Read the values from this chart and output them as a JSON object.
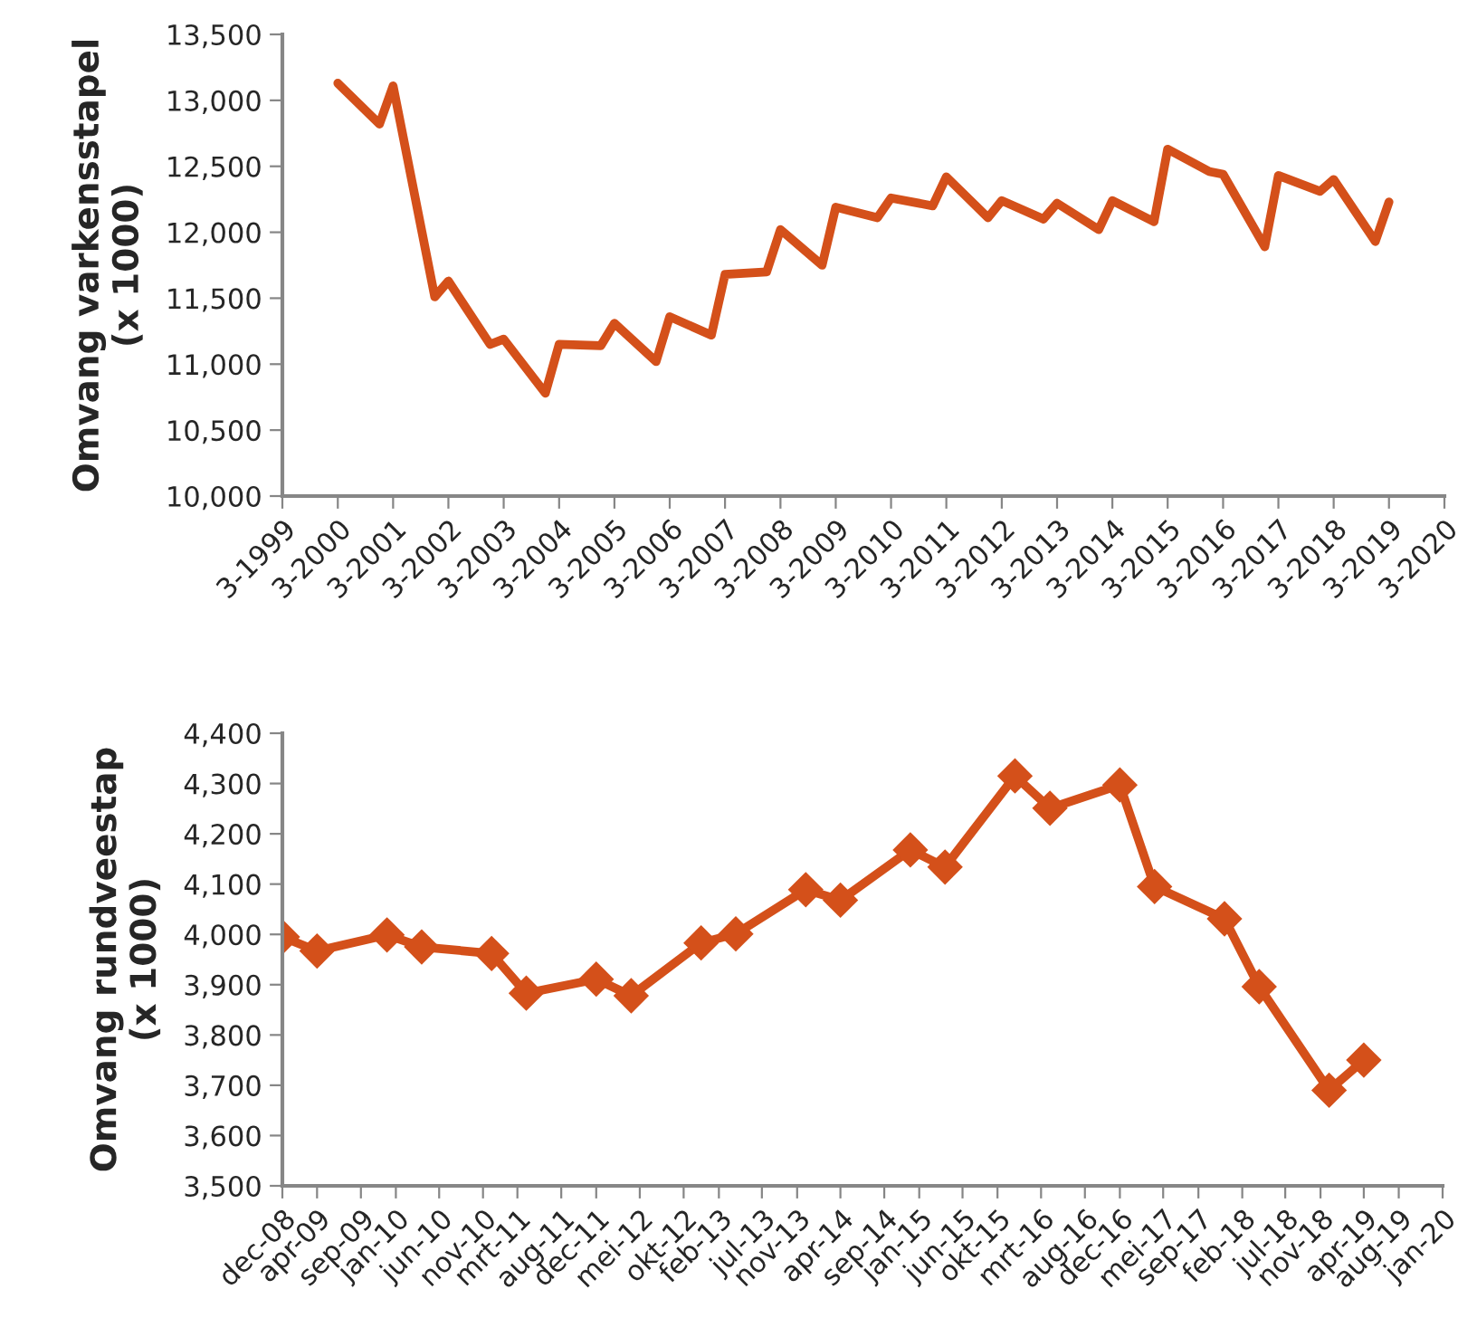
{
  "chart_data": [
    {
      "type": "line",
      "ylabel": "Omvang varkensstapel\n(x 1000)",
      "x": [
        "2000-03",
        "2000-12",
        "2001-03",
        "2001-12",
        "2002-03",
        "2002-12",
        "2003-03",
        "2003-12",
        "2004-03",
        "2004-12",
        "2005-03",
        "2005-12",
        "2006-03",
        "2006-12",
        "2007-03",
        "2007-12",
        "2008-03",
        "2008-12",
        "2009-03",
        "2009-12",
        "2010-03",
        "2010-12",
        "2011-03",
        "2011-12",
        "2012-03",
        "2012-12",
        "2013-03",
        "2013-12",
        "2014-03",
        "2014-12",
        "2015-03",
        "2015-12",
        "2016-03",
        "2016-12",
        "2017-03",
        "2017-12",
        "2018-03",
        "2018-12",
        "2019-03"
      ],
      "series": [
        {
          "color": "#d4501a",
          "values": [
            13130,
            12820,
            13110,
            11510,
            11630,
            11150,
            11190,
            10780,
            11150,
            11140,
            11310,
            11020,
            11360,
            11220,
            11680,
            11700,
            12020,
            11750,
            12190,
            12110,
            12260,
            12200,
            12420,
            12110,
            12240,
            12100,
            12220,
            12020,
            12240,
            12080,
            12630,
            12460,
            12440,
            11890,
            12430,
            12310,
            12400,
            11930,
            12230
          ]
        }
      ],
      "xlim": [
        "1999-03",
        "2020-03"
      ],
      "xticks": [
        {
          "value": "1999-03",
          "label": "3-1999"
        },
        {
          "value": "2000-03",
          "label": "3-2000"
        },
        {
          "value": "2001-03",
          "label": "3-2001"
        },
        {
          "value": "2002-03",
          "label": "3-2002"
        },
        {
          "value": "2003-03",
          "label": "3-2003"
        },
        {
          "value": "2004-03",
          "label": "3-2004"
        },
        {
          "value": "2005-03",
          "label": "3-2005"
        },
        {
          "value": "2006-03",
          "label": "3-2006"
        },
        {
          "value": "2007-03",
          "label": "3-2007"
        },
        {
          "value": "2008-03",
          "label": "3-2008"
        },
        {
          "value": "2009-03",
          "label": "3-2009"
        },
        {
          "value": "2010-03",
          "label": "3-2010"
        },
        {
          "value": "2011-03",
          "label": "3-2011"
        },
        {
          "value": "2012-03",
          "label": "3-2012"
        },
        {
          "value": "2013-03",
          "label": "3-2013"
        },
        {
          "value": "2014-03",
          "label": "3-2014"
        },
        {
          "value": "2015-03",
          "label": "3-2015"
        },
        {
          "value": "2016-03",
          "label": "3-2016"
        },
        {
          "value": "2017-03",
          "label": "3-2017"
        },
        {
          "value": "2018-03",
          "label": "3-2018"
        },
        {
          "value": "2019-03",
          "label": "3-2019"
        },
        {
          "value": "2020-03",
          "label": "3-2020"
        }
      ],
      "ylim": [
        10000,
        13500
      ],
      "yticks": [
        {
          "value": 10000,
          "label": "10,000"
        },
        {
          "value": 10500,
          "label": "10,500"
        },
        {
          "value": 11000,
          "label": "11,000"
        },
        {
          "value": 11500,
          "label": "11,500"
        },
        {
          "value": 12000,
          "label": "12,000"
        },
        {
          "value": 12500,
          "label": "12,500"
        },
        {
          "value": 13000,
          "label": "13,000"
        },
        {
          "value": 13500,
          "label": "13,500"
        }
      ],
      "grid": false,
      "marker": "none",
      "line_style": "solid"
    },
    {
      "type": "line",
      "ylabel": "Omvang rundveestap\n(x 1000)",
      "x": [
        "2008-12",
        "2009-04",
        "2009-12",
        "2010-04",
        "2010-12",
        "2011-04",
        "2011-12",
        "2012-04",
        "2012-12",
        "2013-04",
        "2013-12",
        "2014-04",
        "2014-12",
        "2015-04",
        "2015-12",
        "2016-04",
        "2016-12",
        "2017-04",
        "2017-12",
        "2018-04",
        "2018-12",
        "2019-04"
      ],
      "series": [
        {
          "color": "#d4501a",
          "values": [
            3995,
            3967,
            3999,
            3975,
            3962,
            3883,
            3911,
            3878,
            3983,
            4001,
            4089,
            4068,
            4168,
            4134,
            4315,
            4251,
            4297,
            4095,
            4031,
            3896,
            3690,
            3750
          ]
        }
      ],
      "xlim": [
        "2008-12",
        "2020-01"
      ],
      "xticks": [
        {
          "value": "2008-12",
          "label": "dec-08"
        },
        {
          "value": "2009-04",
          "label": "apr-09"
        },
        {
          "value": "2009-09",
          "label": "sep-09"
        },
        {
          "value": "2010-01",
          "label": "jan-10"
        },
        {
          "value": "2010-06",
          "label": "jun-10"
        },
        {
          "value": "2010-11",
          "label": "nov-10"
        },
        {
          "value": "2011-03",
          "label": "mrt-11"
        },
        {
          "value": "2011-08",
          "label": "aug-11"
        },
        {
          "value": "2011-12",
          "label": "dec-11"
        },
        {
          "value": "2012-05",
          "label": "mei-12"
        },
        {
          "value": "2012-10",
          "label": "okt-12"
        },
        {
          "value": "2013-02",
          "label": "feb-13"
        },
        {
          "value": "2013-07",
          "label": "jul-13"
        },
        {
          "value": "2013-11",
          "label": "nov-13"
        },
        {
          "value": "2014-04",
          "label": "apr-14"
        },
        {
          "value": "2014-09",
          "label": "sep-14"
        },
        {
          "value": "2015-01",
          "label": "jan-15"
        },
        {
          "value": "2015-06",
          "label": "jun-15"
        },
        {
          "value": "2015-10",
          "label": "okt-15"
        },
        {
          "value": "2016-03",
          "label": "mrt-16"
        },
        {
          "value": "2016-08",
          "label": "aug-16"
        },
        {
          "value": "2016-12",
          "label": "dec-16"
        },
        {
          "value": "2017-05",
          "label": "mei-17"
        },
        {
          "value": "2017-09",
          "label": "sep-17"
        },
        {
          "value": "2018-02",
          "label": "feb-18"
        },
        {
          "value": "2018-07",
          "label": "jul-18"
        },
        {
          "value": "2018-11",
          "label": "nov-18"
        },
        {
          "value": "2019-04",
          "label": "apr-19"
        },
        {
          "value": "2019-08",
          "label": "aug-19"
        },
        {
          "value": "2020-01",
          "label": "jan-20"
        }
      ],
      "ylim": [
        3500,
        4400
      ],
      "yticks": [
        {
          "value": 3500,
          "label": "3,500"
        },
        {
          "value": 3600,
          "label": "3,600"
        },
        {
          "value": 3700,
          "label": "3,700"
        },
        {
          "value": 3800,
          "label": "3,800"
        },
        {
          "value": 3900,
          "label": "3,900"
        },
        {
          "value": 4000,
          "label": "4,000"
        },
        {
          "value": 4100,
          "label": "4,100"
        },
        {
          "value": 4200,
          "label": "4,200"
        },
        {
          "value": 4300,
          "label": "4,300"
        },
        {
          "value": 4400,
          "label": "4,400"
        }
      ],
      "grid": false,
      "marker": "diamond",
      "line_style": "solid"
    }
  ]
}
